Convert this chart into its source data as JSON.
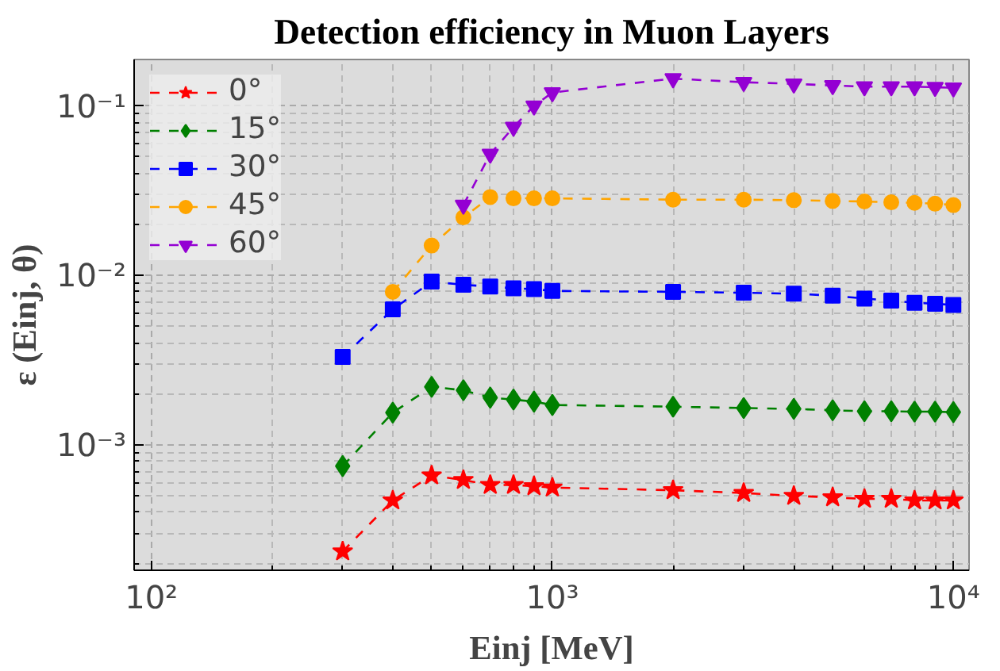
{
  "chart_data": {
    "type": "line",
    "title": "Detection efficiency in Muon Layers",
    "xlabel": "Einj [MeV]",
    "ylabel": "ε (Einj, θ)",
    "log": "xy",
    "grid": true,
    "legend": "top left",
    "line_style": "dashed",
    "xlim": [
      90.6,
      10940
    ],
    "ylim": [
      0.000182,
      0.188
    ],
    "xticks": [
      {
        "value": 100,
        "label": "10²"
      },
      {
        "value": 1000,
        "label": "10³"
      },
      {
        "value": 10000,
        "label": "10⁴"
      }
    ],
    "yticks": [
      {
        "value": 0.001,
        "label": "10⁻³"
      },
      {
        "value": 0.01,
        "label": "10⁻²"
      },
      {
        "value": 0.1,
        "label": "10⁻¹"
      }
    ],
    "x": [
      300,
      400,
      500,
      600,
      700,
      800,
      900,
      1000,
      2000,
      3000,
      4000,
      5000,
      6000,
      7000,
      8000,
      9000,
      10000
    ],
    "series": [
      {
        "name": "0°",
        "color": "#ff0000",
        "marker": "star",
        "values": [
          0.000235,
          0.00047,
          0.00066,
          0.00062,
          0.00058,
          0.00058,
          0.00057,
          0.00056,
          0.00054,
          0.00052,
          0.0005,
          0.00049,
          0.00048,
          0.00048,
          0.00047,
          0.00047,
          0.00047
        ]
      },
      {
        "name": "15°",
        "color": "#008000",
        "marker": "diamond",
        "values": [
          0.00075,
          0.00155,
          0.0022,
          0.0021,
          0.0019,
          0.00185,
          0.0018,
          0.00172,
          0.00168,
          0.00165,
          0.00163,
          0.0016,
          0.00158,
          0.00158,
          0.00157,
          0.00157,
          0.00156
        ]
      },
      {
        "name": "30°",
        "color": "#0000ff",
        "marker": "square",
        "values": [
          0.0033,
          0.0063,
          0.0092,
          0.0088,
          0.0086,
          0.0084,
          0.0083,
          0.0081,
          0.008,
          0.0079,
          0.0078,
          0.0076,
          0.0073,
          0.0071,
          0.0069,
          0.0068,
          0.0067
        ]
      },
      {
        "name": "45°",
        "color": "#ffa500",
        "marker": "circle",
        "values": [
          null,
          0.008,
          0.015,
          0.022,
          0.029,
          0.0285,
          0.0285,
          0.0285,
          0.028,
          0.028,
          0.0278,
          0.0275,
          0.0273,
          0.027,
          0.0268,
          0.0265,
          0.026
        ]
      },
      {
        "name": "60°",
        "color": "#9400d3",
        "marker": "triangle_down",
        "values": [
          null,
          null,
          null,
          0.026,
          0.052,
          0.075,
          0.1,
          0.12,
          0.145,
          0.138,
          0.135,
          0.132,
          0.13,
          0.13,
          0.13,
          0.129,
          0.128
        ]
      }
    ]
  }
}
